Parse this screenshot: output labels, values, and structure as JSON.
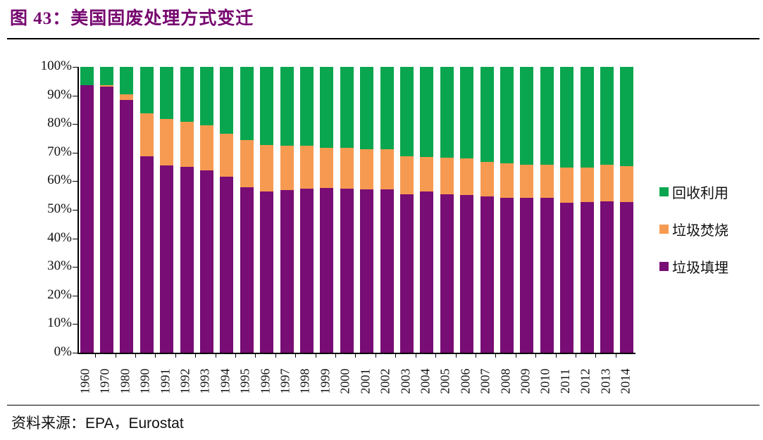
{
  "figure": {
    "label": "图 43：",
    "title": "美国固废处理方式变迁"
  },
  "source": {
    "label": "资料来源：",
    "value": "EPA，Eurostat"
  },
  "colors": {
    "title": "#76076F",
    "landfill": "#770D75",
    "incineration": "#F79A51",
    "recycling": "#0AA64F",
    "axis": "#000000"
  },
  "axis": {
    "y_ticks": [
      "100%",
      "90%",
      "80%",
      "70%",
      "60%",
      "50%",
      "40%",
      "30%",
      "20%",
      "10%",
      "0%"
    ]
  },
  "legend": [
    {
      "label": "回收利用",
      "color_key": "recycling"
    },
    {
      "label": "垃圾焚烧",
      "color_key": "incineration"
    },
    {
      "label": "垃圾填埋",
      "color_key": "landfill"
    }
  ],
  "chart_data": {
    "type": "bar",
    "stacked": true,
    "title": "图 43：美国固废处理方式变迁",
    "xlabel": "",
    "ylabel": "",
    "ylim": [
      0,
      100
    ],
    "ytick_step": 10,
    "ytick_format": "percent",
    "grid": false,
    "legend_position": "right",
    "categories": [
      "1960",
      "1970",
      "1980",
      "1990",
      "1991",
      "1992",
      "1993",
      "1994",
      "1995",
      "1996",
      "1997",
      "1998",
      "1999",
      "2000",
      "2001",
      "2002",
      "2003",
      "2004",
      "2005",
      "2006",
      "2007",
      "2008",
      "2009",
      "2010",
      "2011",
      "2012",
      "2013",
      "2014"
    ],
    "series": [
      {
        "name": "垃圾填埋",
        "color": "#770D75",
        "values": [
          93.6,
          93.0,
          88.5,
          68.8,
          65.5,
          65.0,
          63.9,
          61.5,
          58.0,
          56.3,
          56.9,
          57.5,
          57.6,
          57.5,
          57.1,
          57.1,
          55.4,
          56.5,
          55.4,
          55.2,
          54.6,
          54.2,
          54.1,
          54.2,
          52.4,
          52.8,
          52.9,
          52.6
        ]
      },
      {
        "name": "垃圾焚烧",
        "color": "#F79A51",
        "values": [
          0.0,
          0.7,
          2.0,
          14.9,
          16.4,
          15.9,
          15.6,
          15.0,
          16.3,
          16.4,
          15.5,
          14.9,
          14.2,
          14.1,
          14.2,
          14.2,
          13.3,
          12.1,
          12.9,
          12.7,
          12.1,
          12.1,
          11.6,
          11.5,
          12.3,
          12.1,
          12.9,
          12.7
        ]
      },
      {
        "name": "回收利用",
        "color": "#0AA64F",
        "values": [
          6.4,
          6.3,
          9.5,
          16.3,
          18.1,
          19.1,
          20.5,
          23.5,
          25.7,
          27.3,
          27.6,
          27.6,
          28.2,
          28.4,
          28.7,
          28.7,
          31.3,
          31.4,
          31.7,
          32.1,
          33.3,
          33.7,
          34.3,
          34.3,
          35.3,
          35.1,
          34.2,
          34.7
        ]
      }
    ]
  }
}
